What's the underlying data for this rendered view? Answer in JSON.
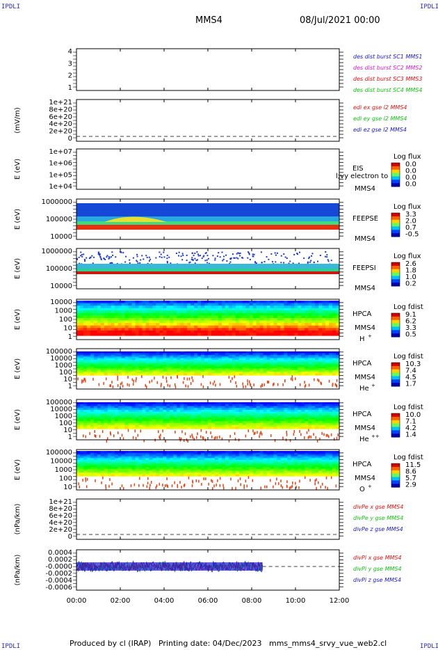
{
  "corner_label": "IPDLI",
  "title": "MMS4",
  "datetime": "08/Jul/2021 00:00",
  "footer": {
    "produced_by": "Produced by cl (IRAP)",
    "printing_date": "Printing date: 04/Dec/2023",
    "file_name": "mms_mms4_srvy_vue_web2.cl"
  },
  "chart_data": {
    "type": "heatmap",
    "x_ticks": [
      "00:00",
      "02:00",
      "04:00",
      "06:00",
      "08:00",
      "10:00",
      "12:00"
    ],
    "xlim": [
      "00:00",
      "12:00"
    ],
    "panels": [
      {
        "id": "des-dist",
        "ylabel": "",
        "yticks": [
          "4",
          "3",
          "2",
          "1"
        ],
        "legend": [
          {
            "text": "des dist burst SC1 MMS1",
            "color": "#1a1ad0"
          },
          {
            "text": "des dist burst SC2 MMS2",
            "color": "#d020c8"
          },
          {
            "text": "des dist burst SC3 MMS3",
            "color": "#e01010"
          },
          {
            "text": "des dist burst SC4 MMS4",
            "color": "#10c010"
          }
        ]
      },
      {
        "id": "edi",
        "ylabel": "(mV/m)",
        "yticks": [
          "1e+21",
          "8e+20",
          "6e+20",
          "4e+20",
          "2e+20",
          "0"
        ],
        "legend": [
          {
            "text": "edi ex gse l2 MMS4",
            "color": "#e01010"
          },
          {
            "text": "edi ey gse l2 MMS4",
            "color": "#10c010"
          },
          {
            "text": "edi ez gse l2 MMS4",
            "color": "#1a1ad0"
          }
        ]
      },
      {
        "id": "eis",
        "ylabel": "E (eV)",
        "yticks": [
          "1e+07",
          "1e+06",
          "1e+05",
          "1e+04"
        ],
        "labels": [
          "EIS",
          "MMS4"
        ],
        "overlay": "l;vy electron to",
        "cbar_title": "Log flux",
        "cbar": [
          "0.0",
          "0.0",
          "0.0",
          "0.0"
        ]
      },
      {
        "id": "feepse",
        "ylabel": "E (eV)",
        "yticks": [
          "1000000",
          "100000",
          "10000"
        ],
        "labels": [
          "FEEPSE",
          "MMS4"
        ],
        "cbar_title": "Log flux",
        "cbar": [
          "3.3",
          "2.0",
          "0.7",
          "-0.5"
        ]
      },
      {
        "id": "feepsi",
        "ylabel": "E (eV)",
        "yticks": [
          "1000000",
          "100000",
          "10000"
        ],
        "labels": [
          "FEEPSI",
          "MMS4"
        ],
        "cbar_title": "Log flux",
        "cbar": [
          "2.6",
          "1.8",
          "1.0",
          "0.2"
        ]
      },
      {
        "id": "hpca-h",
        "ylabel": "E (eV)",
        "yticks": [
          "10000",
          "1000",
          "100",
          "10",
          "1"
        ],
        "labels": [
          "HPCA",
          "MMS4"
        ],
        "species": "H",
        "charge": "+",
        "cbar_title": "Log fdist",
        "cbar": [
          "9.1",
          "6.2",
          "3.3",
          "0.5"
        ]
      },
      {
        "id": "hpca-he",
        "ylabel": "E (eV)",
        "yticks": [
          "100000",
          "10000",
          "1000",
          "100",
          "10",
          "1"
        ],
        "labels": [
          "HPCA",
          "MMS4"
        ],
        "species": "He",
        "charge": "+",
        "cbar_title": "Log fdist",
        "cbar": [
          "10.3",
          "7.4",
          "4.5",
          "1.7"
        ]
      },
      {
        "id": "hpca-hepp",
        "ylabel": "E (eV)",
        "yticks": [
          "100000",
          "10000",
          "1000",
          "100",
          "10",
          "1"
        ],
        "labels": [
          "HPCA",
          "MMS4"
        ],
        "species": "He",
        "charge": "++",
        "cbar_title": "Log fdist",
        "cbar": [
          "10.0",
          "7.1",
          "4.2",
          "1.4"
        ]
      },
      {
        "id": "hpca-o",
        "ylabel": "E (eV)",
        "yticks": [
          "100000",
          "10000",
          "1000",
          "100",
          "10"
        ],
        "labels": [
          "HPCA",
          "MMS4"
        ],
        "species": "O",
        "charge": "+",
        "cbar_title": "Log fdist",
        "cbar": [
          "11.5",
          "8.6",
          "5.7",
          "2.9"
        ]
      },
      {
        "id": "divpe",
        "ylabel": "(nPa/km)",
        "yticks": [
          "1e+21",
          "8e+20",
          "6e+20",
          "4e+20",
          "2e+20",
          "0"
        ],
        "legend": [
          {
            "text": "divPe x gse MMS4",
            "color": "#e01010"
          },
          {
            "text": "divPe y gse MMS4",
            "color": "#10c010"
          },
          {
            "text": "divPe z gse MMS4",
            "color": "#1a1ad0"
          }
        ]
      },
      {
        "id": "divpi",
        "ylabel": "(nPa/km)",
        "yticks": [
          "0.0004",
          "0.0002",
          "-0.0000",
          "-0.0002",
          "-0.0004",
          "-0.0006"
        ],
        "legend": [
          {
            "text": "divPi x gse MMS4",
            "color": "#e01010"
          },
          {
            "text": "divPi y gse MMS4",
            "color": "#10c010"
          },
          {
            "text": "divPi z gse MMS4",
            "color": "#1a1ad0"
          }
        ],
        "data_end": "08:30"
      }
    ]
  }
}
